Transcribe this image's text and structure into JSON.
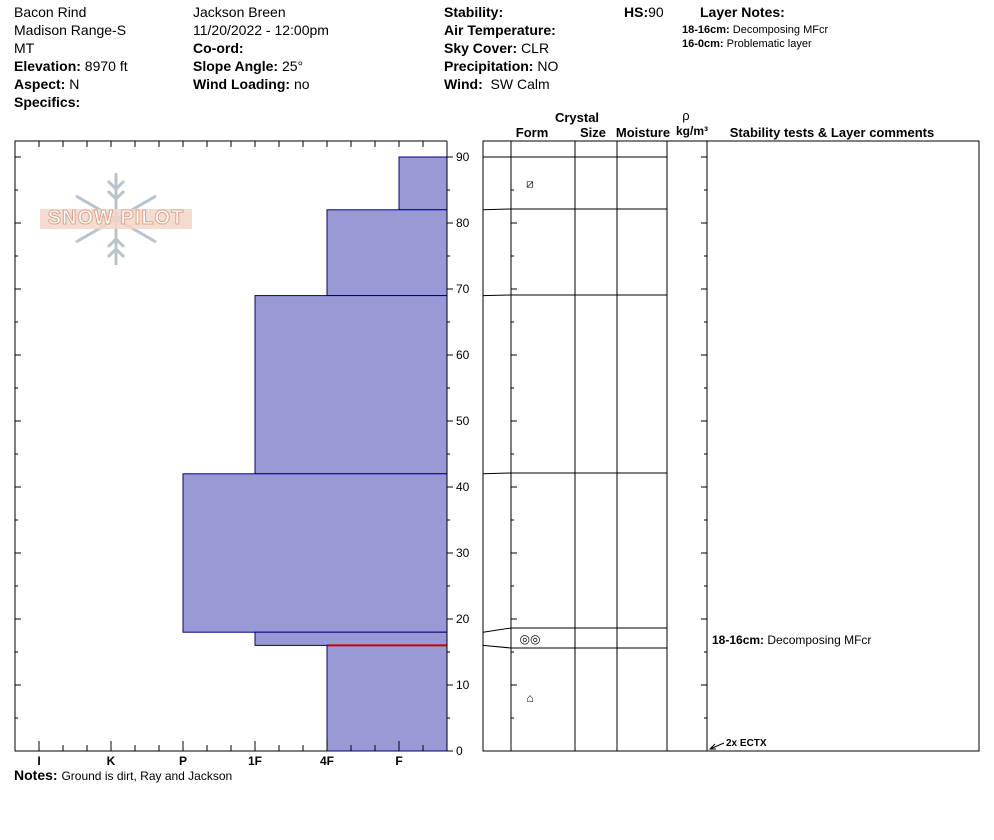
{
  "header": {
    "location": "Bacon Rind",
    "range": "Madison Range-S",
    "state": "MT",
    "elevation_label": "Elevation:",
    "elevation_value": "8970 ft",
    "aspect_label": "Aspect:",
    "aspect_value": "N",
    "specifics_label": "Specifics:",
    "observer": "Jackson Breen",
    "datetime": "11/20/2022 - 12:00pm",
    "coord_label": "Co-ord:",
    "slope_label": "Slope Angle:",
    "slope_value": "25°",
    "wind_loading_label": "Wind Loading:",
    "wind_loading_value": "no",
    "stability_label": "Stability:",
    "air_temp_label": "Air Temperature:",
    "sky_label": "Sky Cover:",
    "sky_value": "CLR",
    "precip_label": "Precipitation:",
    "precip_value": "NO",
    "wind_label": "Wind:",
    "wind_value": "SW Calm",
    "hs_label": "HS:",
    "hs_value": "90",
    "layer_notes_label": "Layer Notes:",
    "layer_notes": [
      {
        "range": "18-16cm:",
        "text": "Decomposing MFcr"
      },
      {
        "range": "16-0cm:",
        "text": "Problematic layer"
      }
    ]
  },
  "logo": {
    "text": "SNOW PILOT"
  },
  "columns": {
    "crystal": "Crystal",
    "form": "Form",
    "size": "Size",
    "moisture": "Moisture",
    "rho": "ρ",
    "density_unit": "kg/m³",
    "comments": "Stability tests & Layer comments"
  },
  "notes": {
    "label": "Notes:",
    "text": "Ground is dirt, Ray and Jackson"
  },
  "chart_data": {
    "type": "bar",
    "title": "",
    "ylabel": "",
    "ylim": [
      0,
      90
    ],
    "y_ticks": [
      "0",
      "10",
      "20",
      "30",
      "40",
      "50",
      "60",
      "70",
      "80",
      "90"
    ],
    "hardness_scale": [
      "I",
      "K",
      "P",
      "1F",
      "4F",
      "F"
    ],
    "hardness_values": {
      "F": 1,
      "4F": 2,
      "1F": 3,
      "P": 4,
      "K": 5,
      "I": 6
    },
    "layers": [
      {
        "top": 90,
        "bottom": 82,
        "hardness": "F"
      },
      {
        "top": 82,
        "bottom": 69,
        "hardness": "4F"
      },
      {
        "top": 69,
        "bottom": 42,
        "hardness": "1F"
      },
      {
        "top": 42,
        "bottom": 18,
        "hardness": "P"
      },
      {
        "top": 18,
        "bottom": 16,
        "hardness": "1F"
      },
      {
        "top": 16,
        "bottom": 0,
        "hardness": "4F"
      }
    ],
    "problem_layer_depth": 16,
    "fill_color": "#9999d6",
    "edge_color": "#000080",
    "problem_color": "#cc0000",
    "table_boundaries": [
      90,
      82,
      69,
      42,
      18,
      16,
      0
    ],
    "grain_symbols": [
      {
        "depth": 86,
        "symbol": "⧄",
        "name": "faceted-grain-icon"
      },
      {
        "depth": 17,
        "symbol": "◎◎",
        "name": "melt-freeze-crust-icon"
      },
      {
        "depth": 8,
        "symbol": "⌂",
        "name": "mixed-grain-icon"
      }
    ],
    "layer_comments": [
      {
        "depth": 17,
        "range": "18-16cm:",
        "text": "Decomposing MFcr"
      }
    ],
    "stability_tests": [
      {
        "depth": 0,
        "text": "2x ECTX"
      }
    ]
  }
}
